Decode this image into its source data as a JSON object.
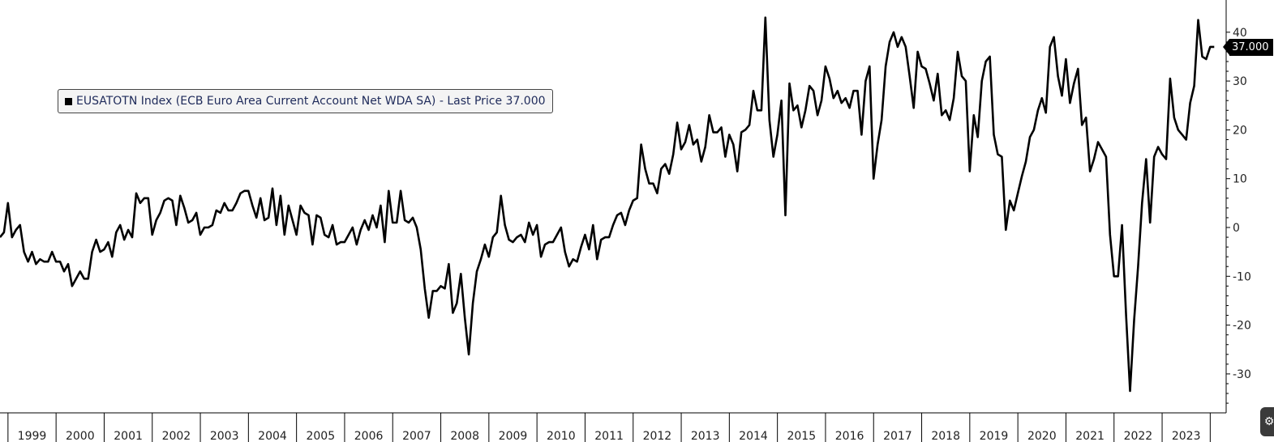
{
  "chart_data": {
    "type": "line",
    "title": "",
    "xlabel": "",
    "ylabel": "",
    "x_axis": {
      "years": [
        "1999",
        "2000",
        "2001",
        "2002",
        "2003",
        "2004",
        "2005",
        "2006",
        "2007",
        "2008",
        "2009",
        "2010",
        "2011",
        "2012",
        "2013",
        "2014",
        "2015",
        "2016",
        "2017",
        "2018",
        "2019",
        "2020",
        "2021",
        "2022",
        "2023"
      ],
      "range": [
        "1998-11",
        "2024-04"
      ]
    },
    "y_axis": {
      "ticks": [
        40,
        30,
        20,
        10,
        0,
        -10,
        -20,
        -30
      ],
      "tick_labels": [
        "40",
        "30",
        "20",
        "10",
        "0",
        "-10",
        "-20",
        "-30"
      ],
      "range": [
        -37,
        46
      ],
      "position": "right"
    },
    "grid": false,
    "legend": {
      "placement": "top-left",
      "label": "EUSATOTN Index (ECB Euro Area Current Account Net WDA SA) - Last Price 37.000"
    },
    "last_price_label": "37.000",
    "last_price": 37.0,
    "series": [
      {
        "name": "EUSATOTN Index (ECB Euro Area Current Account Net WDA SA)",
        "color": "#000000",
        "start": "1998-11",
        "frequency": "monthly",
        "values": [
          -2,
          -1,
          5,
          -2,
          -0.5,
          0.5,
          -5,
          -7,
          -5,
          -7.5,
          -6.5,
          -7,
          -7,
          -5,
          -7,
          -7,
          -9,
          -7.5,
          -12,
          -10.5,
          -9,
          -10.5,
          -10.5,
          -5,
          -2.5,
          -5,
          -4.5,
          -3,
          -6,
          -1,
          0.5,
          -2.5,
          -0.5,
          -2,
          7,
          5,
          6,
          6,
          -1.5,
          1.5,
          3,
          5.5,
          6,
          5.5,
          0.5,
          6.5,
          4,
          1,
          1.5,
          3,
          -1.5,
          0,
          0,
          0.5,
          3.5,
          3,
          5,
          3.5,
          3.5,
          5,
          7,
          7.5,
          7.5,
          4.5,
          2,
          6,
          1.5,
          2,
          8,
          0.5,
          6.5,
          -1.5,
          4.5,
          1.5,
          -1.5,
          4.5,
          3,
          2.5,
          -3.5,
          2.5,
          2,
          -1.5,
          -2,
          0.5,
          -3.5,
          -3,
          -3,
          -1.5,
          0,
          -3.5,
          -0.5,
          1.5,
          -0.5,
          2.5,
          0,
          4.5,
          -3,
          7.5,
          1,
          1,
          7.5,
          1.5,
          1,
          2,
          0,
          -4.5,
          -12.5,
          -18.5,
          -13,
          -13,
          -12,
          -12.5,
          -7.5,
          -17.5,
          -15.5,
          -9.5,
          -18.5,
          -26,
          -15.5,
          -9,
          -6.5,
          -3.5,
          -6,
          -2,
          -1,
          6.5,
          0.5,
          -2.5,
          -3,
          -2,
          -1.5,
          -3,
          1,
          -1.5,
          0.5,
          -6,
          -3.5,
          -3,
          -3,
          -1.5,
          0,
          -5,
          -8,
          -6.5,
          -7,
          -4,
          -1.5,
          -4.5,
          0.5,
          -6.5,
          -2.5,
          -2,
          -2,
          0.5,
          2.5,
          3,
          0.5,
          3.5,
          5.5,
          6,
          17,
          12,
          9,
          9,
          7,
          12,
          13,
          11,
          15,
          21.5,
          16,
          17.5,
          21,
          17,
          18,
          13.5,
          16.5,
          23,
          19.5,
          19.5,
          20.5,
          14.5,
          19,
          17,
          11.5,
          19.5,
          20,
          21,
          28,
          24,
          24,
          43,
          22,
          14.5,
          19,
          26,
          2.5,
          29.5,
          24,
          25,
          20.5,
          24,
          29,
          28,
          23,
          26,
          33,
          30.5,
          26.5,
          28,
          25.5,
          26.5,
          24.5,
          28,
          28,
          19,
          30,
          33,
          10,
          17,
          22,
          33,
          38,
          40,
          37,
          39,
          37,
          31,
          24.5,
          36,
          33,
          32.5,
          29.5,
          26,
          31.5,
          23,
          24,
          22,
          26.5,
          36,
          31,
          30,
          11.5,
          23,
          18.5,
          30,
          34,
          35,
          19,
          15,
          14.5,
          -0.5,
          5.5,
          3.5,
          7,
          10.5,
          13.5,
          18.5,
          20,
          24,
          26.5,
          23.5,
          37,
          39,
          31,
          27,
          34.5,
          25.5,
          29.5,
          32.5,
          21,
          22.5,
          11.5,
          14,
          17.5,
          16,
          14.5,
          -1.5,
          -10,
          -10,
          0.5,
          -18,
          -33.5,
          -19,
          -8,
          5,
          14,
          1,
          14.5,
          16.5,
          15,
          14,
          30.5,
          22.5,
          20,
          19,
          18,
          25.5,
          29,
          42.5,
          35,
          34.5,
          37,
          37
        ]
      }
    ]
  }
}
